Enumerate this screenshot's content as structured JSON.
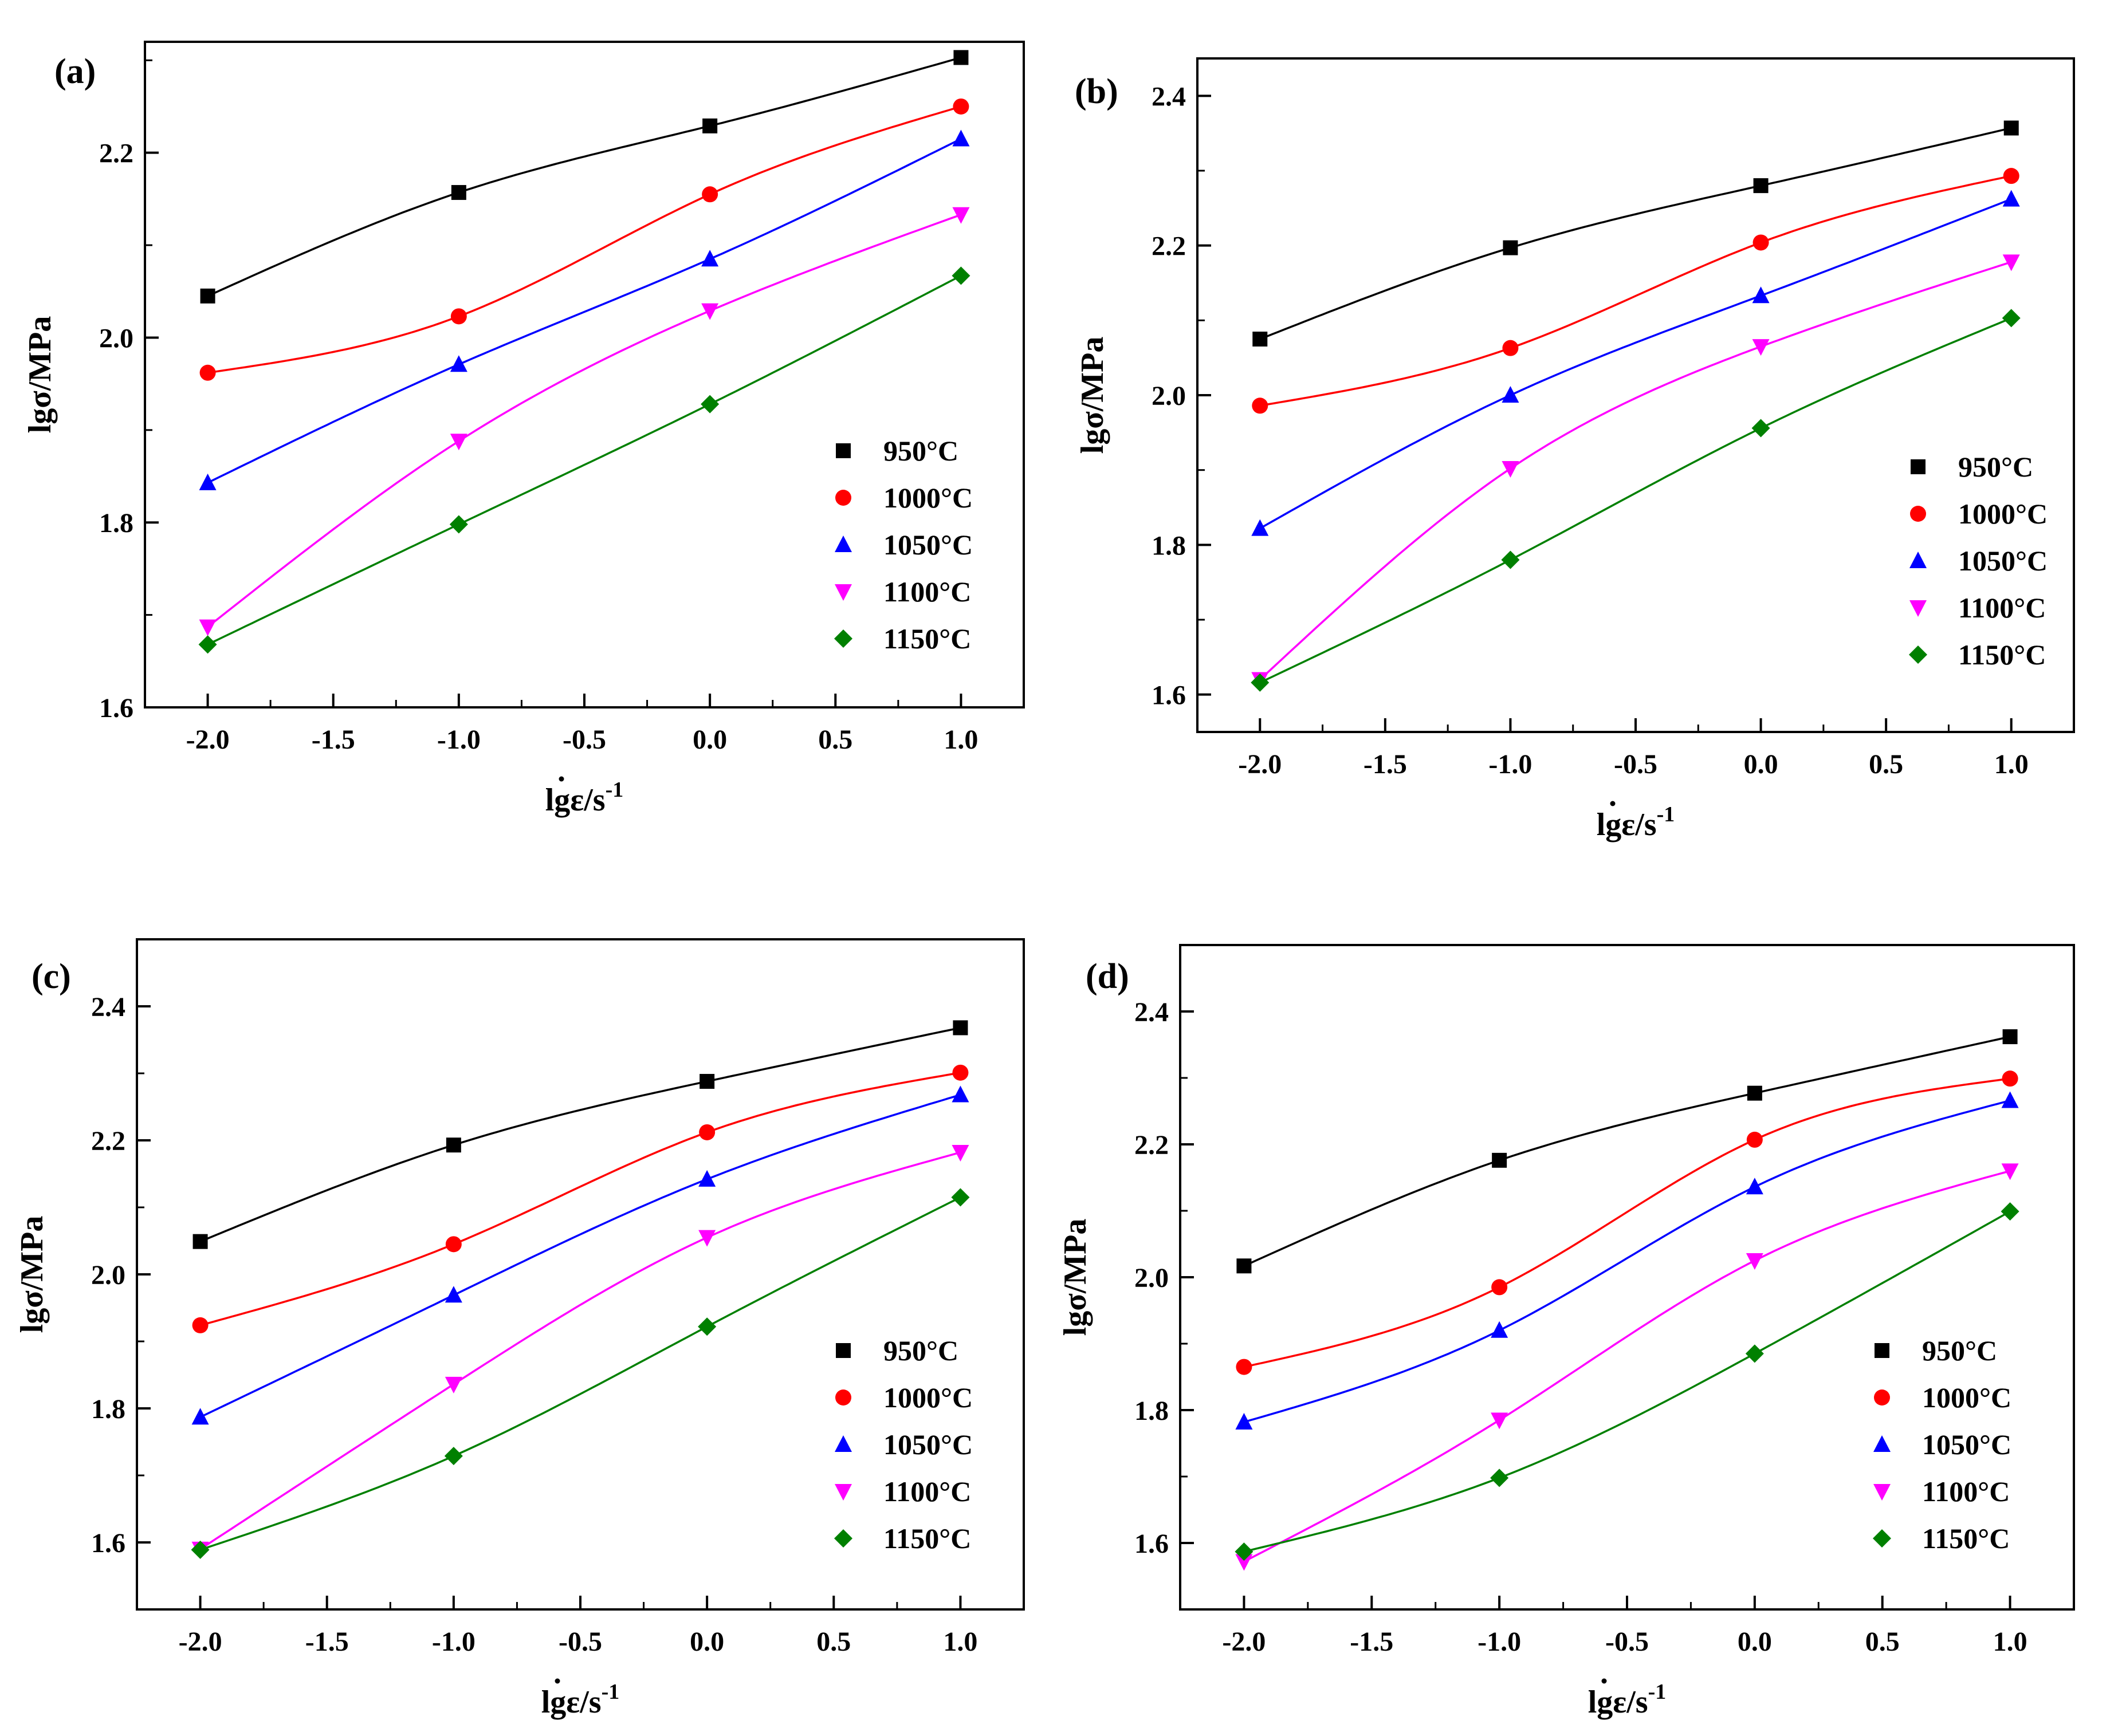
{
  "series_colors": {
    "950°C": "#000000",
    "1000°C": "#ff0000",
    "1050°C": "#0000ff",
    "1100°C": "#ff00ff",
    "1150°C": "#008000"
  },
  "series_markers": {
    "950°C": "square",
    "1000°C": "circle",
    "1050°C": "triangle-up",
    "1100°C": "triangle-down",
    "1150°C": "diamond"
  },
  "chart_data": [
    {
      "type": "scatter",
      "panel_label": "(a)",
      "xlabel": "lgε̇/s⁻¹",
      "xlabel_main": "lgε",
      "xlabel_sup": "-1",
      "xlabel_mid": "/s",
      "ylabel": "lgσ/MPa",
      "x": [
        -2.0,
        -1.0,
        0.0,
        1.0
      ],
      "xlim": [
        -2.25,
        1.25
      ],
      "ylim": [
        1.6,
        2.32
      ],
      "xticks": [
        "-2.0",
        "-1.5",
        "-1.0",
        "-0.5",
        "0.0",
        "0.5",
        "1.0"
      ],
      "yticks": [
        "1.6",
        "1.8",
        "2.0",
        "2.2"
      ],
      "legend_position": "lower-right",
      "series": [
        {
          "name": "950°C",
          "values": [
            2.045,
            2.157,
            2.229,
            2.303
          ]
        },
        {
          "name": "1000°C",
          "values": [
            1.962,
            2.023,
            2.155,
            2.25
          ]
        },
        {
          "name": "1050°C",
          "values": [
            1.843,
            1.971,
            2.085,
            2.215
          ]
        },
        {
          "name": "1100°C",
          "values": [
            1.687,
            1.888,
            2.029,
            2.133
          ]
        },
        {
          "name": "1150°C",
          "values": [
            1.668,
            1.798,
            1.928,
            2.067
          ]
        }
      ]
    },
    {
      "type": "scatter",
      "panel_label": "(b)",
      "xlabel": "lgε̇/s⁻¹",
      "xlabel_main": "lgε",
      "xlabel_sup": "-1",
      "xlabel_mid": "/s",
      "ylabel": "lgσ/MPa",
      "x": [
        -2.0,
        -1.0,
        0.0,
        1.0
      ],
      "xlim": [
        -2.25,
        1.25
      ],
      "ylim": [
        1.55,
        2.45
      ],
      "xticks": [
        "-2.0",
        "-1.5",
        "-1.0",
        "-0.5",
        "0.0",
        "0.5",
        "1.0"
      ],
      "yticks": [
        "1.6",
        "1.8",
        "2.0",
        "2.2",
        "2.4"
      ],
      "legend_position": "lower-right",
      "series": [
        {
          "name": "950°C",
          "values": [
            2.075,
            2.197,
            2.28,
            2.357
          ]
        },
        {
          "name": "1000°C",
          "values": [
            1.986,
            2.063,
            2.204,
            2.293
          ]
        },
        {
          "name": "1050°C",
          "values": [
            1.822,
            2.0,
            2.133,
            2.262
          ]
        },
        {
          "name": "1100°C",
          "values": [
            1.62,
            1.902,
            2.065,
            2.178
          ]
        },
        {
          "name": "1150°C",
          "values": [
            1.616,
            1.78,
            1.956,
            2.103
          ]
        }
      ]
    },
    {
      "type": "scatter",
      "panel_label": "(c)",
      "xlabel": "lgε̇/s⁻¹",
      "xlabel_main": "lgε",
      "xlabel_sup": "-1",
      "xlabel_mid": "/s",
      "ylabel": "lgσ/MPa",
      "x": [
        -2.0,
        -1.0,
        0.0,
        1.0
      ],
      "xlim": [
        -2.25,
        1.25
      ],
      "ylim": [
        1.5,
        2.5
      ],
      "xticks": [
        "-2.0",
        "-1.5",
        "-1.0",
        "-0.5",
        "0.0",
        "0.5",
        "1.0"
      ],
      "yticks": [
        "1.6",
        "1.8",
        "2.0",
        "2.2",
        "2.4"
      ],
      "legend_position": "lower-right",
      "series": [
        {
          "name": "950°C",
          "values": [
            2.049,
            2.193,
            2.288,
            2.368
          ]
        },
        {
          "name": "1000°C",
          "values": [
            1.924,
            2.045,
            2.212,
            2.301
          ]
        },
        {
          "name": "1050°C",
          "values": [
            1.787,
            1.969,
            2.142,
            2.268
          ]
        },
        {
          "name": "1100°C",
          "values": [
            1.59,
            1.836,
            2.055,
            2.182
          ]
        },
        {
          "name": "1150°C",
          "values": [
            1.589,
            1.729,
            1.922,
            2.115
          ]
        }
      ]
    },
    {
      "type": "scatter",
      "panel_label": "(d)",
      "xlabel": "lgε̇/s⁻¹",
      "xlabel_main": "lgε",
      "xlabel_sup": "-1",
      "xlabel_mid": "/s",
      "ylabel": "lgσ/MPa",
      "x": [
        -2.0,
        -1.0,
        0.0,
        1.0
      ],
      "xlim": [
        -2.25,
        1.25
      ],
      "ylim": [
        1.5,
        2.5
      ],
      "xticks": [
        "-2.0",
        "-1.5",
        "-1.0",
        "-0.5",
        "0.0",
        "0.5",
        "1.0"
      ],
      "yticks": [
        "1.6",
        "1.8",
        "2.0",
        "2.2",
        "2.4"
      ],
      "legend_position": "lower-right",
      "series": [
        {
          "name": "950°C",
          "values": [
            2.017,
            2.176,
            2.277,
            2.362
          ]
        },
        {
          "name": "1000°C",
          "values": [
            1.865,
            1.985,
            2.207,
            2.299
          ]
        },
        {
          "name": "1050°C",
          "values": [
            1.782,
            1.92,
            2.136,
            2.266
          ]
        },
        {
          "name": "1100°C",
          "values": [
            1.572,
            1.785,
            2.025,
            2.16
          ]
        },
        {
          "name": "1150°C",
          "values": [
            1.587,
            1.698,
            1.885,
            2.099
          ]
        }
      ]
    }
  ]
}
